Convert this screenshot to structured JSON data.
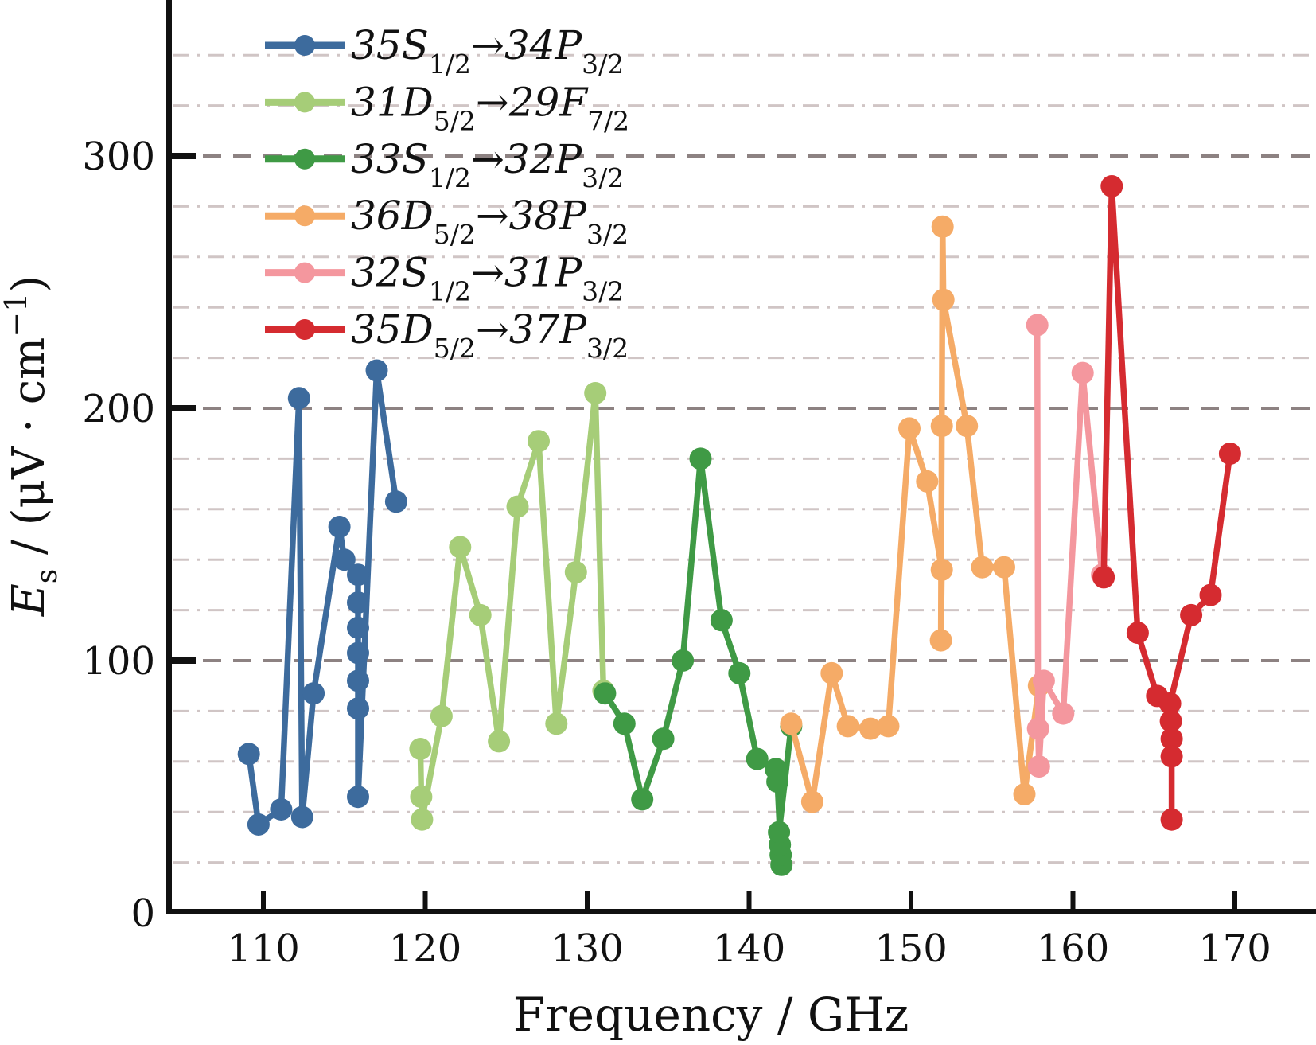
{
  "chart_data": {
    "type": "line",
    "title": "",
    "xlabel": "Frequency / GHz",
    "ylabel": "E_s / (μV · cm⁻¹)",
    "ylabel_parts": {
      "symbol": "E",
      "symbol_sub": "s",
      "mid": " / (μV · cm",
      "sup": "−1",
      "end": ")"
    },
    "xlim": [
      104.2,
      175.0
    ],
    "ylim": [
      0,
      362
    ],
    "x_ticks": [
      110,
      120,
      130,
      140,
      150,
      160,
      170
    ],
    "y_ticks": [
      0,
      100,
      200,
      300
    ],
    "minor_grid_step": 20,
    "grid": {
      "major_color": "#8d8282",
      "minor_color": "#d0c5c5",
      "on": true
    },
    "axis_color": "#111111",
    "legend_position": "top-left",
    "series": [
      {
        "name": "35S1/2→34P3/2",
        "label": {
          "m1": "35S",
          "s1": "1/2",
          "arrow": "→",
          "m2": "34P",
          "s2": "3/2"
        },
        "color": "#3d6b9d",
        "points": [
          [
            109.1,
            63
          ],
          [
            109.7,
            35
          ],
          [
            111.1,
            41
          ],
          [
            112.2,
            204
          ],
          [
            112.4,
            38
          ],
          [
            113.1,
            87
          ],
          [
            114.7,
            153
          ],
          [
            115.0,
            140
          ],
          [
            115.85,
            134
          ],
          [
            115.85,
            123
          ],
          [
            115.85,
            113
          ],
          [
            115.85,
            103
          ],
          [
            115.85,
            92
          ],
          [
            115.85,
            81
          ],
          [
            115.85,
            46
          ],
          [
            117.0,
            215
          ],
          [
            118.2,
            163
          ]
        ]
      },
      {
        "name": "31D5/2→29F7/2",
        "label": {
          "m1": "31D",
          "s1": "5/2",
          "arrow": "→",
          "m2": "29F",
          "s2": "7/2"
        },
        "color": "#a6cd78",
        "points": [
          [
            119.7,
            65
          ],
          [
            119.75,
            46
          ],
          [
            119.8,
            37
          ],
          [
            121.0,
            78
          ],
          [
            122.15,
            145
          ],
          [
            123.4,
            118
          ],
          [
            124.55,
            68
          ],
          [
            125.7,
            161
          ],
          [
            127.0,
            187
          ],
          [
            128.1,
            75
          ],
          [
            129.3,
            135
          ],
          [
            130.5,
            206
          ],
          [
            131.0,
            88
          ]
        ]
      },
      {
        "name": "33S1/2→32P3/2",
        "label": {
          "m1": "33S",
          "s1": "1/2",
          "arrow": "→",
          "m2": "32P",
          "s2": "3/2"
        },
        "color": "#3f9a45",
        "points": [
          [
            131.1,
            87
          ],
          [
            132.3,
            75
          ],
          [
            133.4,
            45
          ],
          [
            134.7,
            69
          ],
          [
            135.9,
            100
          ],
          [
            137.0,
            180
          ],
          [
            138.3,
            116
          ],
          [
            139.4,
            95
          ],
          [
            140.5,
            61
          ],
          [
            141.65,
            57
          ],
          [
            141.75,
            52
          ],
          [
            142.0,
            19
          ],
          [
            141.95,
            23
          ],
          [
            141.9,
            27
          ],
          [
            141.85,
            32
          ],
          [
            142.6,
            74
          ]
        ]
      },
      {
        "name": "36D5/2→38P3/2",
        "label": {
          "m1": "36D",
          "s1": "5/2",
          "arrow": "→",
          "m2": "38P",
          "s2": "3/2"
        },
        "color": "#f5ab67",
        "points": [
          [
            142.6,
            75
          ],
          [
            143.9,
            44
          ],
          [
            145.1,
            95
          ],
          [
            146.1,
            74
          ],
          [
            147.5,
            73
          ],
          [
            148.6,
            74
          ],
          [
            149.9,
            192
          ],
          [
            151.0,
            171
          ],
          [
            151.9,
            136
          ],
          [
            151.85,
            108
          ],
          [
            151.9,
            193
          ],
          [
            151.95,
            272
          ],
          [
            152.0,
            243
          ],
          [
            153.45,
            193
          ],
          [
            154.4,
            137
          ],
          [
            155.75,
            137
          ],
          [
            157.0,
            47
          ],
          [
            157.9,
            90
          ]
        ]
      },
      {
        "name": "32S1/2→31P3/2",
        "label": {
          "m1": "32S",
          "s1": "1/2",
          "arrow": "→",
          "m2": "31P",
          "s2": "3/2"
        },
        "color": "#f4979e",
        "points": [
          [
            157.8,
            233
          ],
          [
            157.85,
            73
          ],
          [
            157.9,
            58
          ],
          [
            158.2,
            92
          ],
          [
            159.4,
            79
          ],
          [
            160.6,
            214
          ],
          [
            161.8,
            134
          ]
        ]
      },
      {
        "name": "35D5/2→37P3/2",
        "label": {
          "m1": "35D",
          "s1": "5/2",
          "arrow": "→",
          "m2": "37P",
          "s2": "3/2"
        },
        "color": "#d52b30",
        "points": [
          [
            161.9,
            133
          ],
          [
            162.4,
            288
          ],
          [
            164.0,
            111
          ],
          [
            165.2,
            86
          ],
          [
            166.0,
            83
          ],
          [
            166.05,
            76
          ],
          [
            166.1,
            69
          ],
          [
            166.1,
            62
          ],
          [
            166.1,
            37
          ],
          [
            166.1,
            62
          ],
          [
            166.1,
            69
          ],
          [
            166.05,
            76
          ],
          [
            166.0,
            83
          ],
          [
            167.3,
            118
          ],
          [
            168.5,
            126
          ],
          [
            169.7,
            182
          ]
        ]
      }
    ]
  }
}
